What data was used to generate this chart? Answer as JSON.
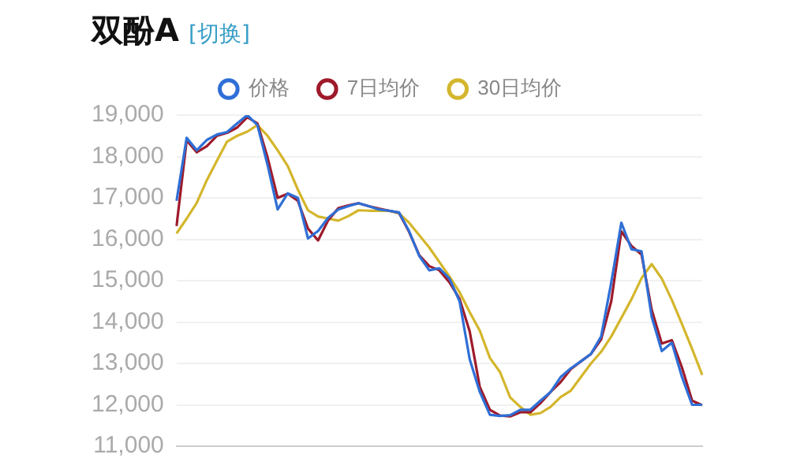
{
  "chart_data": {
    "type": "line",
    "title": "双酚A",
    "subtitle": "[切换]",
    "categories": [
      null,
      null,
      null,
      null,
      null,
      null,
      null,
      null,
      null,
      null,
      null,
      null,
      null,
      null,
      null,
      null,
      null,
      null,
      null,
      null,
      null,
      null,
      null,
      null,
      null,
      null,
      null,
      null,
      null,
      null,
      null,
      null,
      null,
      null,
      null,
      null,
      null,
      null,
      null,
      null,
      null,
      null,
      null,
      null,
      null,
      null,
      null,
      null,
      null,
      null,
      null,
      null,
      null
    ],
    "series": [
      {
        "name": "价格",
        "color": "#2f6fd6",
        "values": [
          16930,
          18450,
          18150,
          18400,
          18530,
          18590,
          18800,
          19000,
          18760,
          17800,
          16720,
          17110,
          17000,
          16020,
          16200,
          16520,
          16720,
          16800,
          16870,
          16800,
          16720,
          16690,
          16650,
          16200,
          15600,
          15250,
          15300,
          15050,
          14500,
          13100,
          12310,
          11760,
          11730,
          11750,
          11880,
          11880,
          12100,
          12310,
          12670,
          12880,
          13050,
          13230,
          13650,
          14950,
          16400,
          15760,
          15710,
          14130,
          13300,
          13500,
          12670,
          12000,
          12000
        ]
      },
      {
        "name": "7日均价",
        "color": "#9e1a2a",
        "values": [
          16320,
          18390,
          18100,
          18250,
          18500,
          18570,
          18700,
          18950,
          18800,
          17980,
          17000,
          17100,
          16930,
          16260,
          15970,
          16460,
          16750,
          16820,
          16870,
          16800,
          16740,
          16690,
          16640,
          16180,
          15620,
          15350,
          15250,
          14960,
          14560,
          13770,
          12430,
          11880,
          11740,
          11720,
          11820,
          11820,
          12040,
          12310,
          12550,
          12860,
          13050,
          13230,
          13580,
          14500,
          16190,
          15840,
          15630,
          14300,
          13480,
          13560,
          12900,
          12100,
          11990
        ]
      },
      {
        "name": "30日均价",
        "color": "#d4b62c",
        "values": [
          16140,
          16500,
          16880,
          17430,
          17900,
          18360,
          18500,
          18600,
          18760,
          18500,
          18150,
          17770,
          17200,
          16700,
          16550,
          16500,
          16450,
          16560,
          16700,
          16690,
          16690,
          16690,
          16630,
          16400,
          16100,
          15800,
          15450,
          15100,
          14720,
          14240,
          13790,
          13130,
          12790,
          12180,
          11950,
          11760,
          11800,
          11950,
          12190,
          12340,
          12670,
          13000,
          13280,
          13650,
          14100,
          14550,
          15060,
          15400,
          15050,
          14530,
          13950,
          13350,
          12720
        ]
      }
    ],
    "ylim": [
      11000,
      19000
    ],
    "yticks": [
      {
        "value": 11000,
        "label": "11,000"
      },
      {
        "value": 12000,
        "label": "12,000"
      },
      {
        "value": 13000,
        "label": "13,000"
      },
      {
        "value": 14000,
        "label": "14,000"
      },
      {
        "value": 15000,
        "label": "15,000"
      },
      {
        "value": 16000,
        "label": "16,000"
      },
      {
        "value": 17000,
        "label": "17,000"
      },
      {
        "value": 18000,
        "label": "18,000"
      },
      {
        "value": 19000,
        "label": "19,000"
      }
    ],
    "grid": "y",
    "legend": "top",
    "tick_labels": "y",
    "line_style": "solid"
  }
}
